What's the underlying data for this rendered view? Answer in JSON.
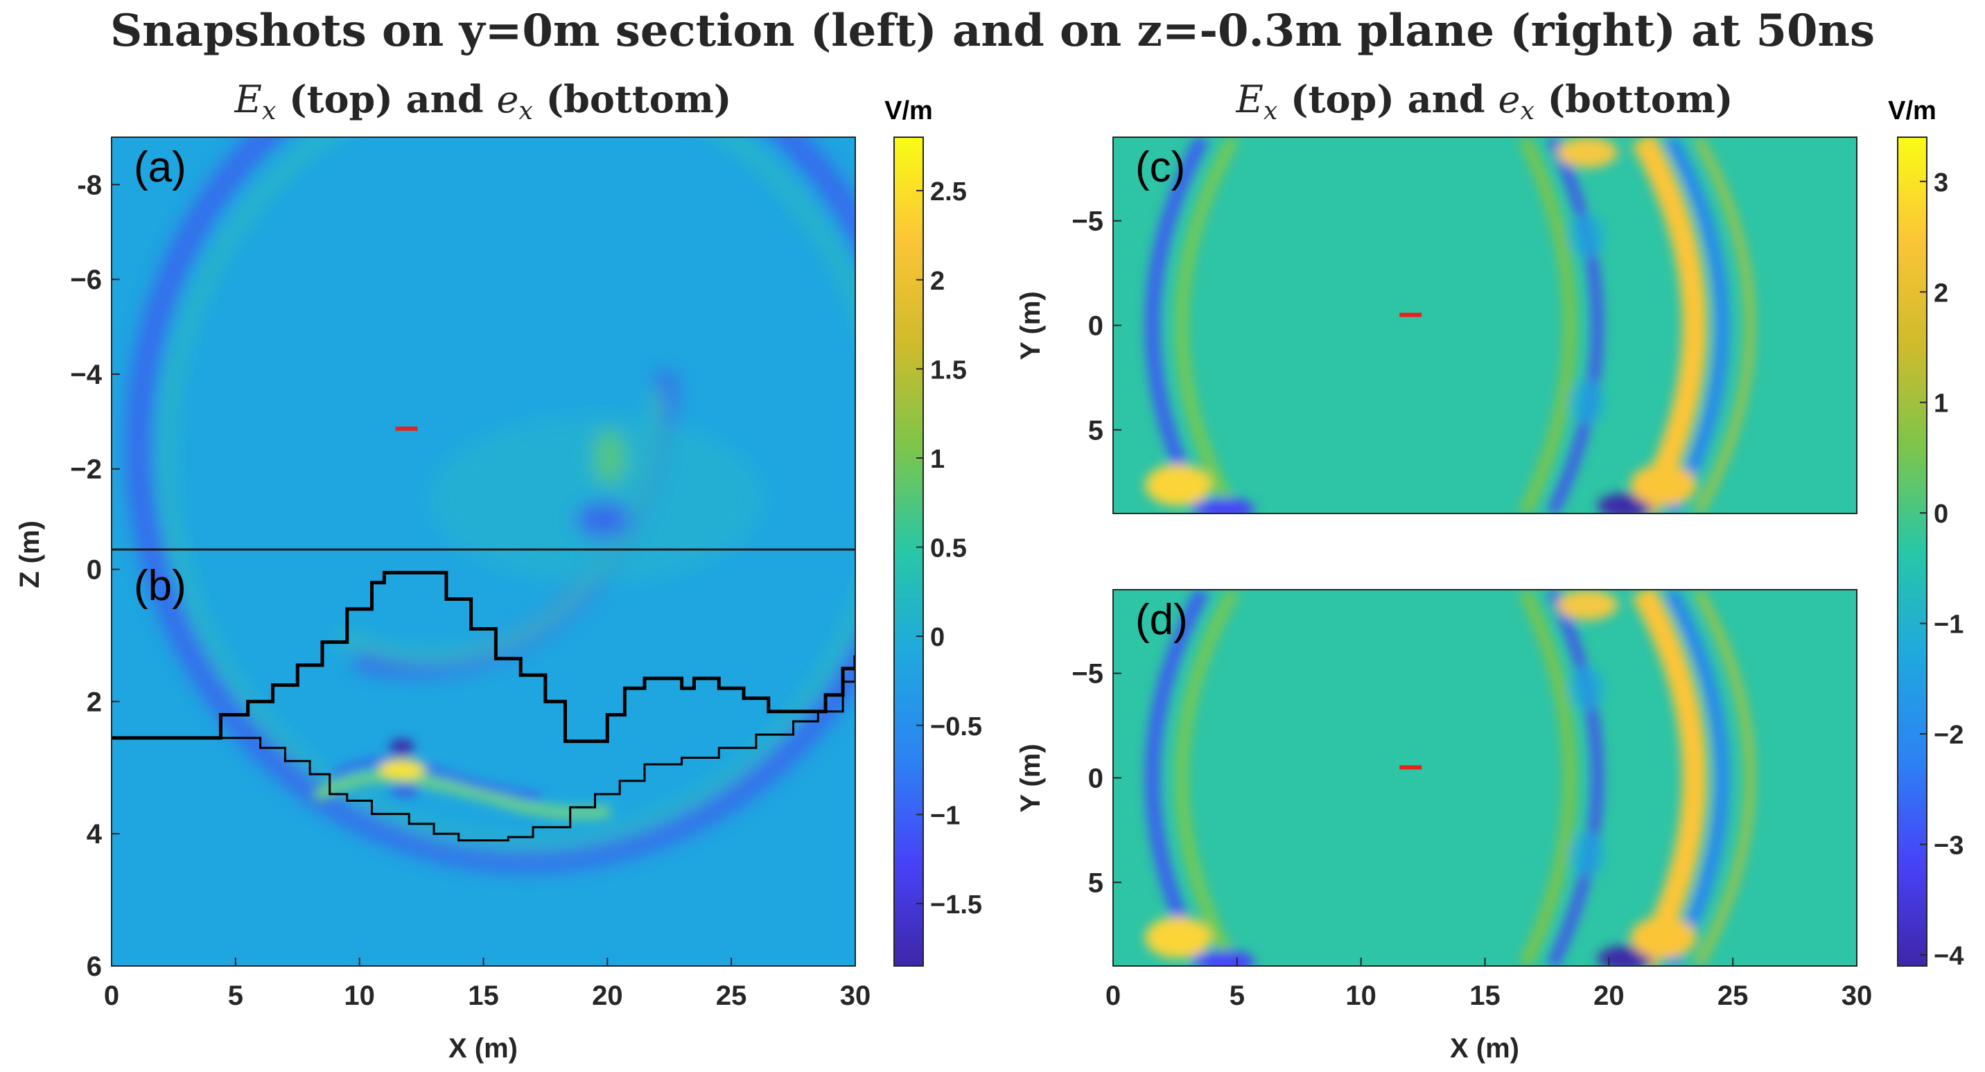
{
  "figure": {
    "title": "Snapshots on y=0m section (left) and on z=-0.3m plane (right) at 50ns",
    "left_subtitle": "E_x (top) and e_x (bottom)",
    "right_subtitle": "E_x (top) and e_x (bottom)"
  },
  "chart_data": [
    {
      "type": "heatmap",
      "panel": "(a)",
      "xlabel": "",
      "ylabel": "",
      "xlim": [
        0,
        30
      ],
      "ylim": [
        -9,
        -0.3
      ],
      "y_ticks": [
        -8,
        -6,
        -4,
        -2
      ],
      "y_tick_labels": [
        "-8",
        "−6",
        "−4",
        "−2"
      ],
      "source_marker": {
        "x": 11.9,
        "z": -2.85,
        "color": "#e8211b"
      }
    },
    {
      "type": "heatmap",
      "panel": "(b)",
      "xlabel": "X (m)",
      "ylabel": "Z (m)",
      "xlim": [
        0,
        30
      ],
      "ylim": [
        -0.3,
        6
      ],
      "x_ticks": [
        0,
        5,
        10,
        15,
        20,
        25,
        30
      ],
      "x_tick_labels": [
        "0",
        "5",
        "10",
        "15",
        "20",
        "25",
        "30"
      ],
      "y_ticks": [
        0,
        2,
        4,
        6
      ],
      "y_tick_labels": [
        "0",
        "2",
        "4",
        "6"
      ],
      "surface_boundary": [
        [
          0,
          2.55
        ],
        [
          4,
          2.55
        ],
        [
          4.4,
          2.2
        ],
        [
          5.5,
          2.0
        ],
        [
          6.5,
          1.75
        ],
        [
          7.5,
          1.45
        ],
        [
          8.5,
          1.1
        ],
        [
          9.5,
          0.6
        ],
        [
          10.5,
          0.2
        ],
        [
          11,
          0.05
        ],
        [
          12.5,
          0.05
        ],
        [
          13.5,
          0.45
        ],
        [
          14.5,
          0.9
        ],
        [
          15.5,
          1.35
        ],
        [
          16.5,
          1.6
        ],
        [
          17.5,
          2.0
        ],
        [
          18.3,
          2.6
        ],
        [
          19.2,
          2.6
        ],
        [
          20,
          2.2
        ],
        [
          20.7,
          1.8
        ],
        [
          21.5,
          1.65
        ],
        [
          22.5,
          1.65
        ],
        [
          23,
          1.8
        ],
        [
          23.5,
          1.65
        ],
        [
          24.5,
          1.8
        ],
        [
          25.5,
          1.95
        ],
        [
          26.5,
          2.15
        ],
        [
          28,
          2.15
        ],
        [
          28.8,
          1.9
        ],
        [
          29.5,
          1.5
        ],
        [
          30,
          1.3
        ]
      ],
      "subsurface_boundary": [
        [
          0,
          2.55
        ],
        [
          4,
          2.55
        ],
        [
          5,
          2.55
        ],
        [
          6,
          2.7
        ],
        [
          7,
          2.9
        ],
        [
          8,
          3.1
        ],
        [
          8.8,
          3.4
        ],
        [
          9.5,
          3.5
        ],
        [
          10.5,
          3.7
        ],
        [
          12,
          3.85
        ],
        [
          13,
          4.0
        ],
        [
          14,
          4.1
        ],
        [
          16,
          4.05
        ],
        [
          17,
          3.9
        ],
        [
          18.5,
          3.6
        ],
        [
          19.5,
          3.4
        ],
        [
          20.5,
          3.2
        ],
        [
          21.5,
          2.95
        ],
        [
          23,
          2.85
        ],
        [
          24.5,
          2.7
        ],
        [
          26,
          2.5
        ],
        [
          27.5,
          2.3
        ],
        [
          28.5,
          2.15
        ],
        [
          29.5,
          1.7
        ],
        [
          30,
          1.3
        ]
      ],
      "source_marker": null
    },
    {
      "type": "heatmap",
      "panel": "(c)",
      "xlabel": "",
      "ylabel": "Y (m)",
      "xlim": [
        0,
        30
      ],
      "ylim": [
        -9,
        9
      ],
      "y_ticks": [
        -5,
        0,
        5
      ],
      "y_tick_labels": [
        "−5",
        "0",
        "5"
      ],
      "source_marker": {
        "x": 12,
        "y": -0.5,
        "color": "#e8211b"
      }
    },
    {
      "type": "heatmap",
      "panel": "(d)",
      "xlabel": "X (m)",
      "ylabel": "Y (m)",
      "xlim": [
        0,
        30
      ],
      "ylim": [
        -9,
        9
      ],
      "x_ticks": [
        0,
        5,
        10,
        15,
        20,
        25,
        30
      ],
      "x_tick_labels": [
        "0",
        "5",
        "10",
        "15",
        "20",
        "25",
        "30"
      ],
      "y_ticks": [
        -5,
        0,
        5
      ],
      "y_tick_labels": [
        "−5",
        "0",
        "5"
      ],
      "source_marker": {
        "x": 12,
        "y": -0.5,
        "color": "#e8211b"
      }
    }
  ],
  "colorbars": {
    "left": {
      "unit": "V/m",
      "range": [
        -1.85,
        2.8
      ],
      "ticks": [
        -1.5,
        -1,
        -0.5,
        0,
        0.5,
        1,
        1.5,
        2,
        2.5
      ],
      "tick_labels": [
        "−1.5",
        "−1",
        "−0.5",
        "0",
        "0.5",
        "1",
        "1.5",
        "2",
        "2.5"
      ]
    },
    "right": {
      "unit": "V/m",
      "range": [
        -4.1,
        3.4
      ],
      "ticks": [
        -4,
        -3,
        -2,
        -1,
        0,
        1,
        2,
        3
      ],
      "tick_labels": [
        "−4",
        "−3",
        "−2",
        "−1",
        "0",
        "1",
        "2",
        "3"
      ]
    },
    "colormap": "parula",
    "stops": [
      "#3e26a8",
      "#4743f8",
      "#2c83f4",
      "#1fa8de",
      "#27c7a7",
      "#7cc54b",
      "#cfbb2b",
      "#fbc537",
      "#f9fb15"
    ]
  }
}
